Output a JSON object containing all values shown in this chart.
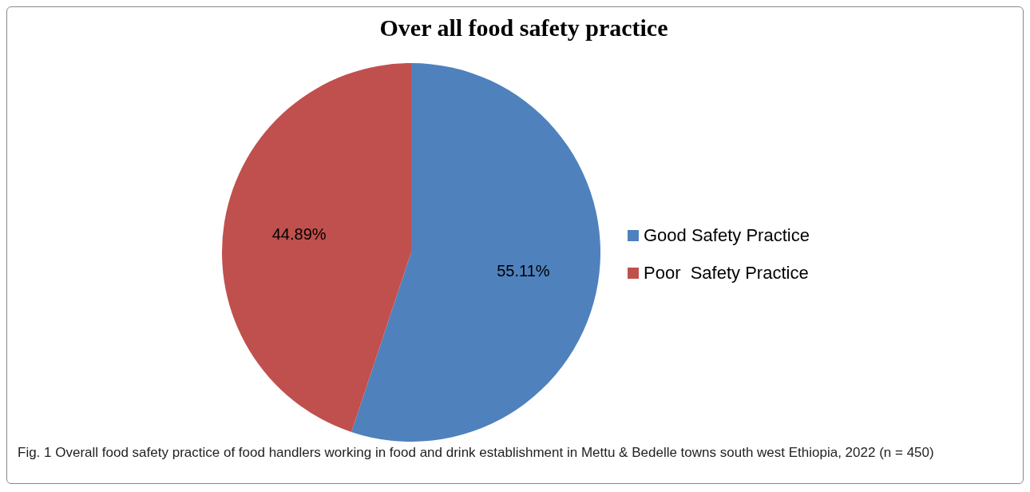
{
  "chart_data": {
    "type": "pie",
    "title": "Over all food safety practice",
    "categories": [
      "Good Safety Practice",
      "Poor  Safety Practice"
    ],
    "values": [
      55.11,
      44.89
    ],
    "colors": [
      "#4f81bd",
      "#c0504d"
    ],
    "value_labels": [
      "55.11%",
      "44.89%"
    ],
    "legend": "right",
    "annotations": [
      "Fig. 1  Overall food safety practice of food handlers working in food and drink establishment in Mettu & Bedelle towns south west Ethiopia, 2022 (n = 450)"
    ]
  }
}
